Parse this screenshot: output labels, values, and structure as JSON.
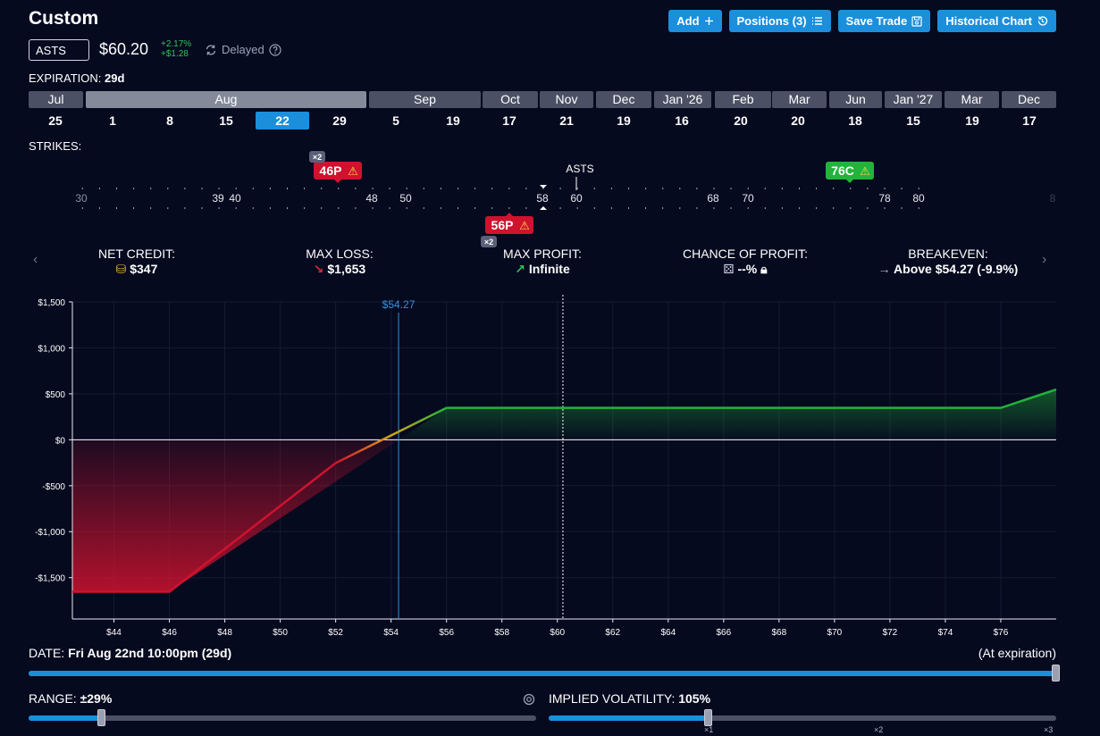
{
  "header": {
    "title": "Custom",
    "buttons": [
      {
        "label": "Add",
        "icon": "plus-icon"
      },
      {
        "label": "Positions (3)",
        "icon": "list-icon"
      },
      {
        "label": "Save Trade",
        "icon": "save-icon"
      },
      {
        "label": "Historical Chart",
        "icon": "history-icon"
      }
    ]
  },
  "quote": {
    "symbol": "ASTS",
    "price": "$60.20",
    "change_pct": "+2.17%",
    "change_abs": "+$1.28",
    "status": "Delayed"
  },
  "expiration": {
    "label": "EXPIRATION:",
    "value": "29d",
    "months": [
      {
        "label": "Jul",
        "active": false
      },
      {
        "label": "Aug",
        "active": true
      },
      {
        "label": "Sep",
        "active": false
      },
      {
        "label": "Oct",
        "active": false
      },
      {
        "label": "Nov",
        "active": false
      },
      {
        "label": "Dec",
        "active": false
      },
      {
        "label": "Jan '26",
        "active": false
      },
      {
        "label": "Feb",
        "active": false
      },
      {
        "label": "Mar",
        "active": false
      },
      {
        "label": "Jun",
        "active": false
      },
      {
        "label": "Jan '27",
        "active": false
      },
      {
        "label": "Mar",
        "active": false
      },
      {
        "label": "Dec",
        "active": false
      }
    ],
    "days": [
      "25",
      "1",
      "8",
      "15",
      "22",
      "29",
      "5",
      "19",
      "17",
      "21",
      "19",
      "16",
      "20",
      "20",
      "18",
      "15",
      "19",
      "17"
    ],
    "selected_day_index": 4
  },
  "strikes": {
    "label": "STRIKES:",
    "underlying": "ASTS",
    "tick_labels": [
      "30",
      "39",
      "40",
      "48",
      "50",
      "58",
      "60",
      "68",
      "70",
      "78",
      "80"
    ],
    "legs": [
      {
        "label": "46P",
        "strike": 46,
        "qty": "×2",
        "color": "#d0122f"
      },
      {
        "label": "56P",
        "strike": 56,
        "qty": "×2",
        "color": "#d0122f"
      },
      {
        "label": "76C",
        "strike": 76,
        "qty": "",
        "color": "#22b33a"
      }
    ],
    "warning_icon": "warning-icon"
  },
  "stats": {
    "net_credit": {
      "label": "NET CREDIT:",
      "value": "$347",
      "icon": "coins-icon"
    },
    "max_loss": {
      "label": "MAX LOSS:",
      "value": "$1,653",
      "icon": "arrow-down-right-icon"
    },
    "max_profit": {
      "label": "MAX PROFIT:",
      "value": "Infinite",
      "icon": "arrow-up-right-icon"
    },
    "chance": {
      "label": "CHANCE OF PROFIT:",
      "value": "--%",
      "icon": "dice-icon"
    },
    "breakeven": {
      "label": "BREAKEVEN:",
      "value": "Above $54.27 (-9.9%)",
      "icon": "arrow-right-icon"
    }
  },
  "chart_data": {
    "type": "line",
    "x_ticks": [
      "$44",
      "$46",
      "$48",
      "$50",
      "$52",
      "$54",
      "$56",
      "$58",
      "$60",
      "$62",
      "$64",
      "$66",
      "$68",
      "$70",
      "$72",
      "$74",
      "$76"
    ],
    "y_ticks": [
      "$1,500",
      "$1,000",
      "$500",
      "$0",
      "-$500",
      "-$1,000",
      "-$1,500"
    ],
    "xlim": [
      42.5,
      78
    ],
    "ylim": [
      -1950,
      1500
    ],
    "series": [
      {
        "x": [
          42.5,
          46,
          56,
          76,
          78
        ],
        "y": [
          -1653,
          -1653,
          347,
          347,
          547
        ]
      }
    ],
    "breakeven": 54.27,
    "breakeven_label": "$54.27",
    "current_price": 60.2,
    "loss_color": "#d0122f",
    "profit_color": "#22b33a"
  },
  "date": {
    "label": "DATE:",
    "value": "Fri Aug 22nd 10:00pm (29d)",
    "right_label": "(At expiration)",
    "fraction": 1.0
  },
  "range": {
    "label": "RANGE:",
    "value": "±29%",
    "fraction": 0.145
  },
  "iv": {
    "label": "IMPLIED VOLATILITY:",
    "value": "105%",
    "fraction": 0.315,
    "marks": [
      "×1",
      "×2",
      "×3"
    ]
  }
}
